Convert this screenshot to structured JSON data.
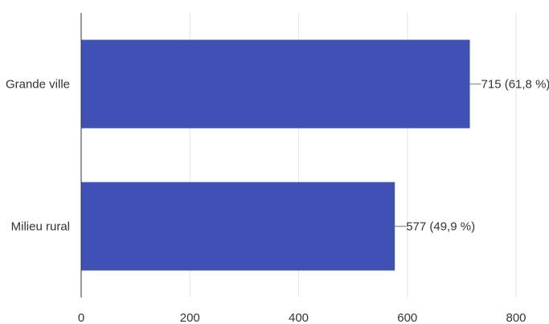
{
  "chart_data": {
    "type": "bar",
    "orientation": "horizontal",
    "categories": [
      "Grande ville",
      "Milieu rural"
    ],
    "values": [
      715,
      577
    ],
    "data_labels": [
      "715 (61,8 %)",
      "577 (49,9 %)"
    ],
    "title": "",
    "xlabel": "",
    "ylabel": "",
    "xlim": [
      0,
      800
    ],
    "x_ticks": [
      "0",
      "200",
      "400",
      "600",
      "800"
    ],
    "grid": "vertical",
    "legend": "none",
    "colors": {
      "bar": "#3f51b5",
      "grid": "#e6e6e6",
      "axis": "#333333",
      "text": "#333333",
      "leader": "#9e9e9e"
    }
  }
}
